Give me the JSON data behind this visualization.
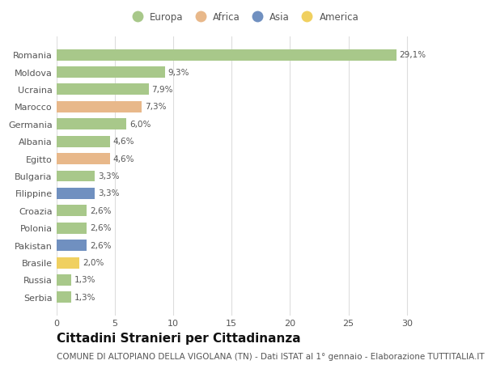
{
  "countries": [
    "Romania",
    "Moldova",
    "Ucraina",
    "Marocco",
    "Germania",
    "Albania",
    "Egitto",
    "Bulgaria",
    "Filippine",
    "Croazia",
    "Polonia",
    "Pakistan",
    "Brasile",
    "Russia",
    "Serbia"
  ],
  "values": [
    29.1,
    9.3,
    7.9,
    7.3,
    6.0,
    4.6,
    4.6,
    3.3,
    3.3,
    2.6,
    2.6,
    2.6,
    2.0,
    1.3,
    1.3
  ],
  "labels": [
    "29,1%",
    "9,3%",
    "7,9%",
    "7,3%",
    "6,0%",
    "4,6%",
    "4,6%",
    "3,3%",
    "3,3%",
    "2,6%",
    "2,6%",
    "2,6%",
    "2,0%",
    "1,3%",
    "1,3%"
  ],
  "continents": [
    "Europa",
    "Europa",
    "Europa",
    "Africa",
    "Europa",
    "Europa",
    "Africa",
    "Europa",
    "Asia",
    "Europa",
    "Europa",
    "Asia",
    "America",
    "Europa",
    "Europa"
  ],
  "continent_colors": {
    "Europa": "#a8c88a",
    "Africa": "#e8b88a",
    "Asia": "#7090c0",
    "America": "#f0d060"
  },
  "legend_order": [
    "Europa",
    "Africa",
    "Asia",
    "America"
  ],
  "title": "Cittadini Stranieri per Cittadinanza",
  "subtitle": "COMUNE DI ALTOPIANO DELLA VIGOLANA (TN) - Dati ISTAT al 1° gennaio - Elaborazione TUTTITALIA.IT",
  "xlim": [
    0,
    32
  ],
  "xticks": [
    0,
    5,
    10,
    15,
    20,
    25,
    30
  ],
  "background_color": "#ffffff",
  "bar_height": 0.65,
  "grid_color": "#dddddd",
  "title_fontsize": 11,
  "subtitle_fontsize": 7.5,
  "label_fontsize": 7.5,
  "ytick_fontsize": 8,
  "xtick_fontsize": 8,
  "legend_fontsize": 8.5,
  "text_color": "#555555",
  "title_color": "#111111"
}
